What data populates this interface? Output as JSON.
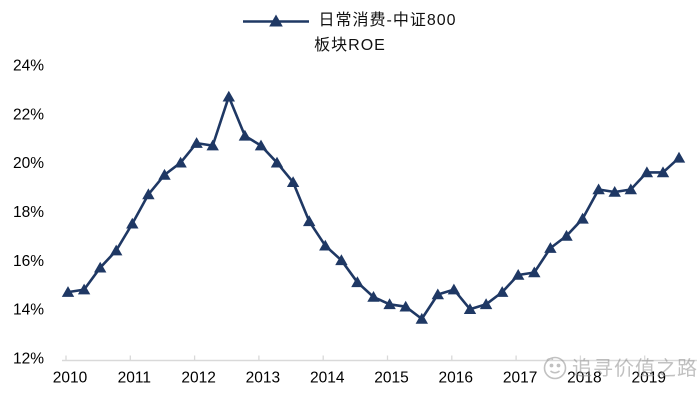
{
  "legend": {
    "label_line1": "日常消费-中证800",
    "label_line2": "板块ROE"
  },
  "watermark": {
    "logo": "smiley-face-logo",
    "text": "追寻价值之路"
  },
  "colors": {
    "series": "#1f3864",
    "axis": "#d9d9d9",
    "label": "#000000",
    "watermark": "#8f8f8f"
  },
  "chart_data": {
    "type": "line",
    "title": "日常消费-中证800 板块ROE",
    "legend_position": "top-center",
    "grid": false,
    "marker": "triangle-up",
    "ylabel": "",
    "xlabel": "",
    "ylim": [
      12,
      24
    ],
    "ytick_step": 2,
    "y_tick_labels": [
      "12%",
      "14%",
      "16%",
      "18%",
      "20%",
      "22%",
      "24%"
    ],
    "x_tick_labels": [
      "2010",
      "2011",
      "2012",
      "2013",
      "2014",
      "2015",
      "2016",
      "2017",
      "2018",
      "2019"
    ],
    "series": [
      {
        "name": "日常消费-中证800板块ROE",
        "x": [
          "2010Q1",
          "2010Q2",
          "2010Q3",
          "2010Q4",
          "2011Q1",
          "2011Q2",
          "2011Q3",
          "2011Q4",
          "2012Q1",
          "2012Q2",
          "2012Q3",
          "2012Q4",
          "2013Q1",
          "2013Q2",
          "2013Q3",
          "2013Q4",
          "2014Q1",
          "2014Q2",
          "2014Q3",
          "2014Q4",
          "2015Q1",
          "2015Q2",
          "2015Q3",
          "2015Q4",
          "2016Q1",
          "2016Q2",
          "2016Q3",
          "2016Q4",
          "2017Q1",
          "2017Q2",
          "2017Q3",
          "2017Q4",
          "2018Q1",
          "2018Q2",
          "2018Q3",
          "2018Q4",
          "2019Q1",
          "2019Q2",
          "2019Q3"
        ],
        "values": [
          14.7,
          14.8,
          15.7,
          16.4,
          17.5,
          18.7,
          19.5,
          20.0,
          20.8,
          20.7,
          22.7,
          21.1,
          20.7,
          20.0,
          19.2,
          17.6,
          16.6,
          16.0,
          15.1,
          14.5,
          14.2,
          14.1,
          13.6,
          14.6,
          14.8,
          14.0,
          14.2,
          14.7,
          15.4,
          15.5,
          16.5,
          17.0,
          17.7,
          18.9,
          18.8,
          18.9,
          19.6,
          19.6,
          20.2
        ],
        "unit": "%"
      }
    ]
  }
}
